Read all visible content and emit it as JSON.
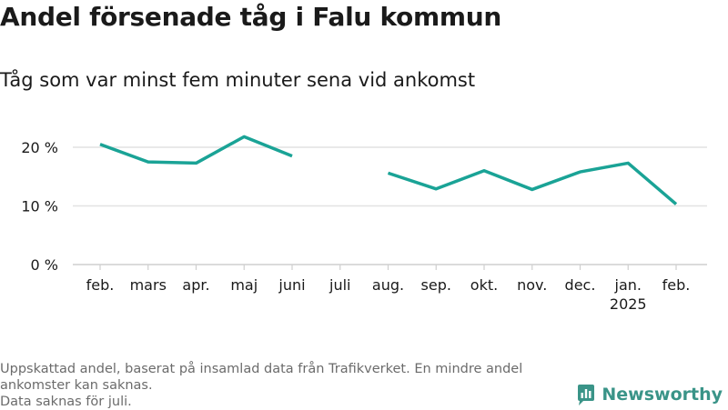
{
  "header": {
    "title": "Andel försenade tåg i Falu kommun",
    "subtitle": "Tåg som var minst fem minuter sena vid ankomst"
  },
  "chart_data": {
    "type": "line",
    "categories": [
      "feb.",
      "mars",
      "apr.",
      "maj",
      "juni",
      "juli",
      "aug.",
      "sep.",
      "okt.",
      "nov.",
      "dec.",
      "jan.",
      "feb."
    ],
    "year_labels": [
      "",
      "",
      "",
      "",
      "",
      "",
      "",
      "",
      "",
      "",
      "",
      "2025",
      ""
    ],
    "series": [
      {
        "values": [
          20.5,
          17.5,
          17.3,
          21.8,
          18.5,
          null,
          15.6,
          12.9,
          16.0,
          12.8,
          15.8,
          17.3,
          10.3
        ]
      }
    ],
    "y_ticks": [
      0,
      10,
      20
    ],
    "y_tick_labels": [
      "0 %",
      "10 %",
      "20 %"
    ],
    "ylim": [
      0,
      22
    ],
    "grid": true,
    "color": "#1aa396"
  },
  "footer": {
    "note_line1": "Uppskattad andel, baserat på insamlad data från Trafikverket. En mindre andel",
    "note_line2": "ankomster kan saknas.",
    "note_line3": "Data saknas för juli.",
    "brand": "Newsworthy",
    "brand_icon": "newsworthy-logo-icon",
    "brand_color": "#3a9488"
  }
}
